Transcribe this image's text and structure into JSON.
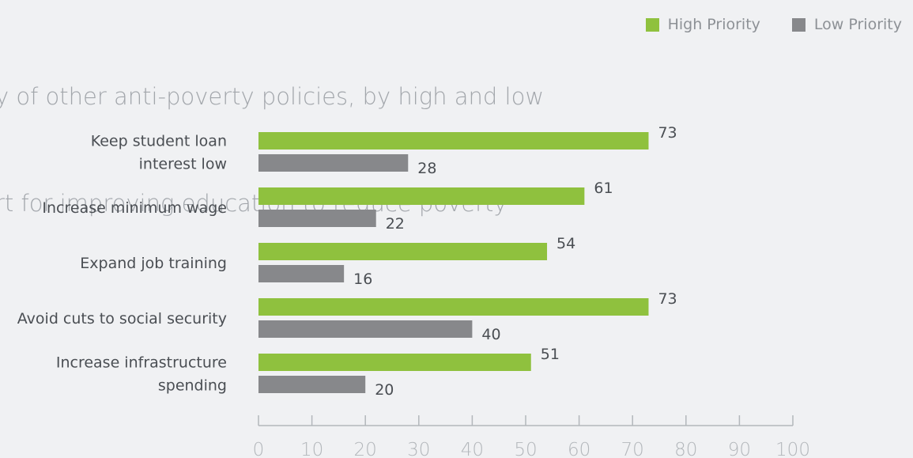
{
  "title_lines": [
    "y of other anti-poverty policies, by high and low",
    "rt for improving education to reduce poverty"
  ],
  "legend": {
    "items": [
      {
        "label": "High Priority",
        "color": "#8fc13e"
      },
      {
        "label": "Low Priority",
        "color": "#87888b"
      }
    ]
  },
  "chart_data": {
    "type": "bar",
    "orientation": "horizontal",
    "categories": [
      [
        "Keep student loan",
        "interest low"
      ],
      [
        "Increase minimum wage"
      ],
      [
        "Expand job training"
      ],
      [
        "Avoid cuts to social security"
      ],
      [
        "Increase infrastructure",
        "spending"
      ]
    ],
    "series": [
      {
        "name": "High Priority",
        "color": "#8fc13e",
        "values": [
          73,
          61,
          54,
          73,
          51
        ]
      },
      {
        "name": "Low Priority",
        "color": "#87888b",
        "values": [
          28,
          22,
          16,
          40,
          20
        ]
      }
    ],
    "xlim": [
      0,
      100
    ],
    "xticks": [
      0,
      10,
      20,
      30,
      40,
      50,
      60,
      70,
      80,
      90,
      100
    ],
    "grid": false,
    "legend_position": "top-right"
  }
}
